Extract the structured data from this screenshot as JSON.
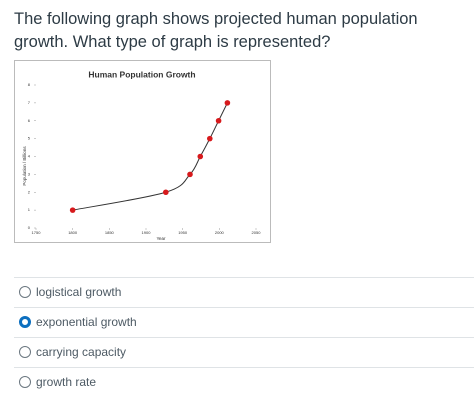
{
  "question": "The following graph shows projected human population growth. What type of graph is represented?",
  "chart_data": {
    "type": "line",
    "title": "Human Population Growth",
    "x_label": "Year",
    "y_label": "Population / Billions",
    "x": [
      1800,
      1927,
      1960,
      1974,
      1987,
      1999,
      2011
    ],
    "values": [
      1,
      2,
      3,
      4,
      5,
      6,
      7
    ],
    "color": "#d7191c",
    "line_color": "#333333",
    "xlim": [
      1750,
      2050
    ],
    "xticks": [
      1750,
      1800,
      1850,
      1900,
      1950,
      2000,
      2050
    ],
    "ylim": [
      0,
      8
    ],
    "yticks": [
      0,
      1,
      2,
      3,
      4,
      5,
      6,
      7,
      8
    ]
  },
  "options": [
    {
      "label": "logistical growth",
      "selected": false
    },
    {
      "label": "exponential growth",
      "selected": true
    },
    {
      "label": "carrying capacity",
      "selected": false
    },
    {
      "label": "growth rate",
      "selected": false
    }
  ]
}
